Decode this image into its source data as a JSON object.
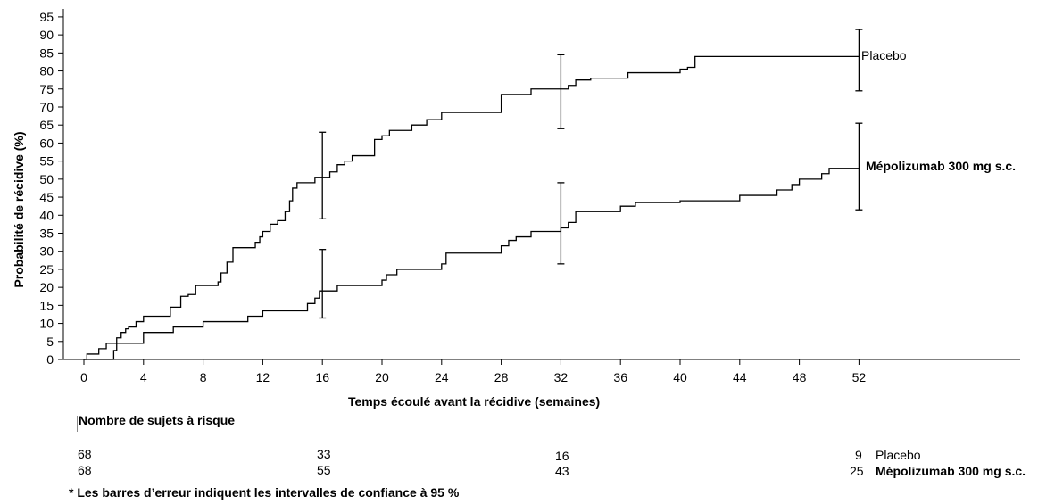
{
  "chart_data": {
    "type": "line",
    "ylabel": "Probabilité de récidive (%)",
    "xlabel": "Temps écoulé avant la récidive (semaines)",
    "ylim": [
      0,
      95
    ],
    "xlim": [
      0,
      52
    ],
    "y_ticks": [
      0,
      5,
      10,
      15,
      20,
      25,
      30,
      35,
      40,
      45,
      50,
      55,
      60,
      65,
      70,
      75,
      80,
      85,
      90,
      95
    ],
    "x_ticks": [
      0,
      4,
      8,
      12,
      16,
      20,
      24,
      28,
      32,
      36,
      40,
      44,
      48,
      52
    ],
    "grid": false,
    "series": [
      {
        "name": "Placebo",
        "step_points": [
          [
            0,
            0
          ],
          [
            0.2,
            1.5
          ],
          [
            1,
            3
          ],
          [
            1.5,
            4.5
          ],
          [
            2.2,
            6
          ],
          [
            2.5,
            7.5
          ],
          [
            2.8,
            8.5
          ],
          [
            3,
            9
          ],
          [
            3.5,
            10.5
          ],
          [
            4,
            12
          ],
          [
            5.8,
            14.5
          ],
          [
            6.5,
            17.5
          ],
          [
            7,
            18
          ],
          [
            7.5,
            20.5
          ],
          [
            9,
            21.5
          ],
          [
            9.2,
            24
          ],
          [
            9.6,
            27
          ],
          [
            10,
            31
          ],
          [
            11.5,
            32.5
          ],
          [
            11.8,
            34
          ],
          [
            12,
            35.5
          ],
          [
            12.5,
            37.5
          ],
          [
            13,
            38.5
          ],
          [
            13.5,
            41
          ],
          [
            13.8,
            44
          ],
          [
            14,
            47.5
          ],
          [
            14.3,
            49
          ],
          [
            15.5,
            50.5
          ],
          [
            16.5,
            52
          ],
          [
            17,
            54
          ],
          [
            17.5,
            55
          ],
          [
            18,
            56.5
          ],
          [
            19.5,
            61
          ],
          [
            20,
            62
          ],
          [
            20.5,
            63.5
          ],
          [
            22,
            65
          ],
          [
            23,
            66.5
          ],
          [
            24,
            68.5
          ],
          [
            28,
            73.5
          ],
          [
            30,
            75
          ],
          [
            32,
            75
          ],
          [
            32.5,
            76
          ],
          [
            33,
            77.5
          ],
          [
            34,
            78
          ],
          [
            36.5,
            79.5
          ],
          [
            40,
            80.5
          ],
          [
            40.5,
            81
          ],
          [
            41,
            84
          ],
          [
            52,
            84
          ]
        ],
        "ci": [
          {
            "x": 16,
            "lower": 39,
            "upper": 63
          },
          {
            "x": 32,
            "lower": 64,
            "upper": 84.5
          },
          {
            "x": 52,
            "lower": 74.5,
            "upper": 91.5
          }
        ]
      },
      {
        "name": "Mépolizumab 300 mg s.c.",
        "step_points": [
          [
            0,
            0
          ],
          [
            1.8,
            0
          ],
          [
            2,
            2.5
          ],
          [
            2.2,
            4.5
          ],
          [
            4,
            7.5
          ],
          [
            6,
            9
          ],
          [
            8,
            10.5
          ],
          [
            11,
            12
          ],
          [
            12,
            13.5
          ],
          [
            15,
            15.5
          ],
          [
            15.5,
            17
          ],
          [
            15.8,
            19
          ],
          [
            17,
            20.5
          ],
          [
            20,
            22
          ],
          [
            20.3,
            23.5
          ],
          [
            21,
            25
          ],
          [
            24,
            26.5
          ],
          [
            24.3,
            29.5
          ],
          [
            28,
            31.5
          ],
          [
            28.5,
            33
          ],
          [
            29,
            34
          ],
          [
            30,
            35.5
          ],
          [
            32,
            36.5
          ],
          [
            32.5,
            38
          ],
          [
            33,
            41
          ],
          [
            34,
            41
          ],
          [
            36,
            42.5
          ],
          [
            37,
            43.5
          ],
          [
            40,
            44
          ],
          [
            44,
            45.5
          ],
          [
            46.5,
            47
          ],
          [
            47.5,
            48.5
          ],
          [
            48,
            50
          ],
          [
            49.5,
            51.5
          ],
          [
            50,
            53
          ],
          [
            52,
            53
          ]
        ],
        "ci": [
          {
            "x": 16,
            "lower": 11.5,
            "upper": 30.5
          },
          {
            "x": 32,
            "lower": 26.5,
            "upper": 49
          },
          {
            "x": 52,
            "lower": 41.5,
            "upper": 65.5
          }
        ]
      }
    ]
  },
  "risk_table": {
    "title": "Nombre de sujets à risque",
    "rows": [
      {
        "label": "Placebo",
        "values": [
          "68",
          "33",
          "16",
          "9"
        ]
      },
      {
        "label": "Mépolizumab 300 mg s.c.",
        "values": [
          "68",
          "55",
          "43",
          "25"
        ]
      }
    ]
  },
  "footnote": "* Les barres d’erreur indiquent les intervalles de confiance à 95 %"
}
